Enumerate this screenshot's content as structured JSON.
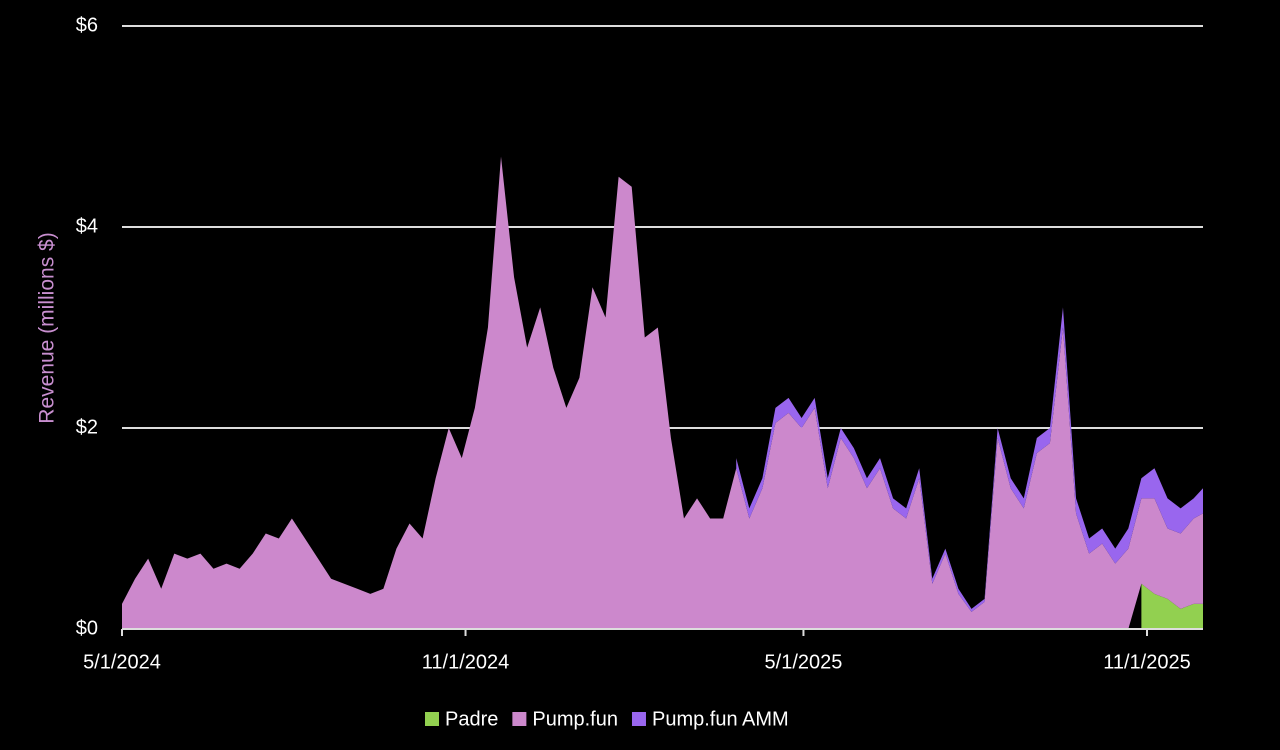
{
  "chart_data": {
    "type": "area",
    "stacked": true,
    "y_label": "Revenue (millions $)",
    "x": [
      "2024-05-01",
      "2024-05-08",
      "2024-05-15",
      "2024-05-22",
      "2024-05-29",
      "2024-06-05",
      "2024-06-12",
      "2024-06-19",
      "2024-06-26",
      "2024-07-03",
      "2024-07-10",
      "2024-07-17",
      "2024-07-24",
      "2024-07-31",
      "2024-08-07",
      "2024-08-14",
      "2024-08-21",
      "2024-08-28",
      "2024-09-04",
      "2024-09-11",
      "2024-09-18",
      "2024-09-25",
      "2024-10-02",
      "2024-10-09",
      "2024-10-16",
      "2024-10-23",
      "2024-10-30",
      "2024-11-06",
      "2024-11-13",
      "2024-11-20",
      "2024-11-27",
      "2024-12-04",
      "2024-12-11",
      "2024-12-18",
      "2024-12-25",
      "2025-01-01",
      "2025-01-08",
      "2025-01-15",
      "2025-01-22",
      "2025-01-29",
      "2025-02-05",
      "2025-02-12",
      "2025-02-19",
      "2025-02-26",
      "2025-03-05",
      "2025-03-12",
      "2025-03-19",
      "2025-03-26",
      "2025-04-02",
      "2025-04-09",
      "2025-04-16",
      "2025-04-23",
      "2025-04-30",
      "2025-05-07",
      "2025-05-14",
      "2025-05-21",
      "2025-05-28",
      "2025-06-04",
      "2025-06-11",
      "2025-06-18",
      "2025-06-25",
      "2025-07-02",
      "2025-07-09",
      "2025-07-16",
      "2025-07-23",
      "2025-07-30",
      "2025-08-06",
      "2025-08-13",
      "2025-08-20",
      "2025-08-27",
      "2025-09-03",
      "2025-09-10",
      "2025-09-17",
      "2025-09-24",
      "2025-10-01",
      "2025-10-08",
      "2025-10-15",
      "2025-10-22",
      "2025-10-29",
      "2025-11-05",
      "2025-11-12",
      "2025-11-19",
      "2025-11-26",
      "2025-12-01"
    ],
    "series": [
      {
        "name": "Padre",
        "color": "#92d050",
        "values": [
          null,
          null,
          null,
          null,
          null,
          null,
          null,
          null,
          null,
          null,
          null,
          null,
          null,
          null,
          null,
          null,
          null,
          null,
          null,
          null,
          null,
          null,
          null,
          null,
          null,
          null,
          null,
          null,
          null,
          null,
          null,
          null,
          null,
          null,
          null,
          null,
          null,
          null,
          null,
          null,
          null,
          null,
          null,
          null,
          null,
          null,
          null,
          null,
          null,
          null,
          null,
          null,
          null,
          null,
          null,
          null,
          null,
          null,
          null,
          null,
          null,
          null,
          null,
          null,
          null,
          null,
          null,
          null,
          null,
          null,
          null,
          null,
          null,
          null,
          null,
          null,
          null,
          null,
          0.45,
          0.35,
          0.3,
          0.2,
          0.25,
          0.25
        ]
      },
      {
        "name": "Pump.fun",
        "color": "#cc88cc",
        "values": [
          0.25,
          0.5,
          0.7,
          0.4,
          0.75,
          0.7,
          0.75,
          0.6,
          0.65,
          0.6,
          0.75,
          0.95,
          0.9,
          1.1,
          0.9,
          0.7,
          0.5,
          0.45,
          0.4,
          0.35,
          0.4,
          0.8,
          1.05,
          0.9,
          1.5,
          2.0,
          1.7,
          2.2,
          3.0,
          4.7,
          3.5,
          2.8,
          3.2,
          2.6,
          2.2,
          2.5,
          3.4,
          3.1,
          4.5,
          4.4,
          2.9,
          3.0,
          1.9,
          1.1,
          1.3,
          1.1,
          1.1,
          1.6,
          1.1,
          1.4,
          2.05,
          2.15,
          2.0,
          2.2,
          1.4,
          1.9,
          1.7,
          1.4,
          1.6,
          1.2,
          1.1,
          1.5,
          0.45,
          0.75,
          0.35,
          0.17,
          0.27,
          1.9,
          1.4,
          1.2,
          1.75,
          1.85,
          3.0,
          1.15,
          0.75,
          0.85,
          0.65,
          0.8,
          0.85,
          0.95,
          0.7,
          0.75,
          0.85,
          0.9
        ]
      },
      {
        "name": "Pump.fun AMM",
        "color": "#9966ee",
        "values": [
          null,
          null,
          null,
          null,
          null,
          null,
          null,
          null,
          null,
          null,
          null,
          null,
          null,
          null,
          null,
          null,
          null,
          null,
          null,
          null,
          null,
          null,
          null,
          null,
          null,
          null,
          null,
          null,
          null,
          null,
          null,
          null,
          null,
          null,
          null,
          null,
          null,
          null,
          null,
          null,
          null,
          null,
          null,
          null,
          null,
          null,
          null,
          0.1,
          0.1,
          0.1,
          0.15,
          0.15,
          0.1,
          0.1,
          0.1,
          0.1,
          0.1,
          0.1,
          0.1,
          0.1,
          0.1,
          0.1,
          0.05,
          0.05,
          0.05,
          0.03,
          0.03,
          0.1,
          0.1,
          0.1,
          0.15,
          0.15,
          0.2,
          0.15,
          0.15,
          0.15,
          0.15,
          0.2,
          0.2,
          0.3,
          0.3,
          0.25,
          0.2,
          0.25
        ]
      }
    ],
    "xlim": [
      "2024-05-01",
      "2025-12-01"
    ],
    "xticks": [
      {
        "value": "2024-05-01",
        "label": "5/1/2024"
      },
      {
        "value": "2024-11-01",
        "label": "11/1/2024"
      },
      {
        "value": "2025-05-01",
        "label": "5/1/2025"
      },
      {
        "value": "2025-11-01",
        "label": "11/1/2025"
      }
    ],
    "ylim": [
      0,
      6
    ],
    "yticks": [
      {
        "value": 0,
        "label": "$0"
      },
      {
        "value": 2,
        "label": "$2"
      },
      {
        "value": 4,
        "label": "$4"
      },
      {
        "value": 6,
        "label": "$6"
      }
    ],
    "grid": true,
    "legend": "bottom"
  }
}
